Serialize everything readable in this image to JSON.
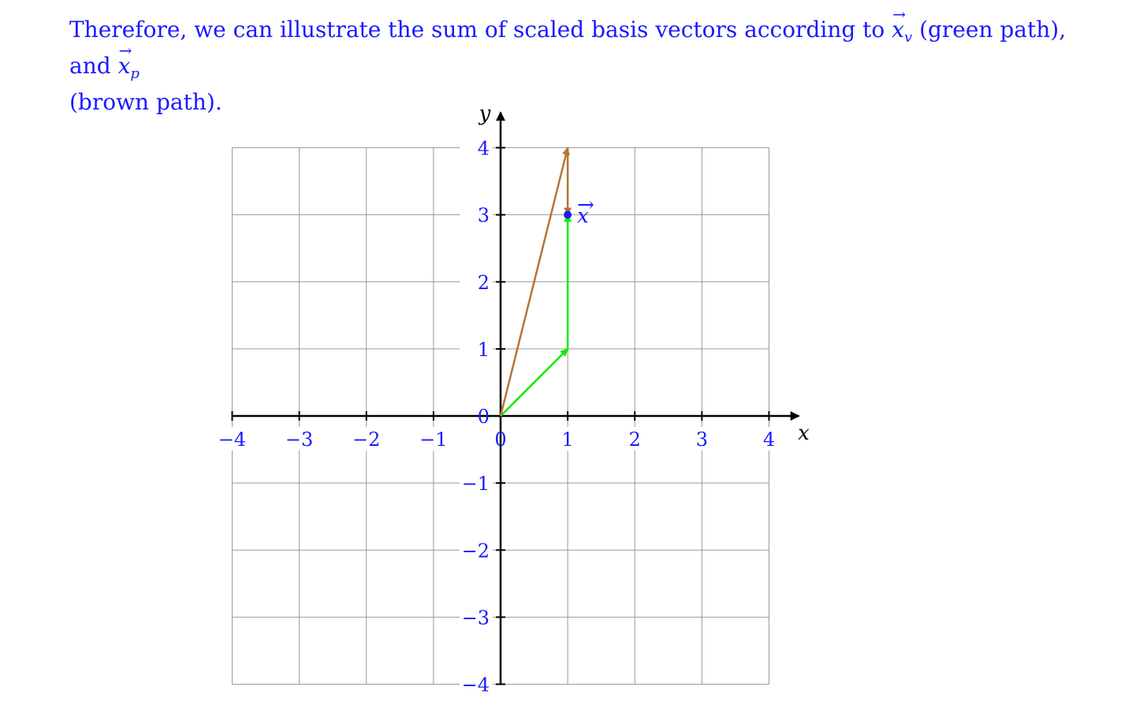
{
  "text": {
    "line_start": "Therefore, we can illustrate the sum of scaled basis vectors according to ",
    "green_label": "(green path), and ",
    "line_end": "(brown path)."
  },
  "math": {
    "vec_symbol": "x",
    "arrow": "→",
    "sub_v": "v",
    "sub_p": "p"
  },
  "chart_data": {
    "type": "vector-diagram",
    "xlabel": "x",
    "ylabel": "y",
    "xlim": [
      -4,
      4
    ],
    "ylim": [
      -4,
      4
    ],
    "grid": true,
    "x_ticks": [
      "−4",
      "−3",
      "−2",
      "−1",
      "0",
      "1",
      "2",
      "3",
      "4"
    ],
    "y_ticks": [
      "−4",
      "−3",
      "−2",
      "−1",
      "0",
      "1",
      "2",
      "3",
      "4"
    ],
    "point": {
      "x": 1,
      "y": 3,
      "label": "x",
      "label_arrow": "→",
      "color": "#1a1aff"
    },
    "paths": [
      {
        "color": "#00ee00",
        "segments": [
          {
            "from": [
              0,
              0
            ],
            "to": [
              1,
              1
            ]
          },
          {
            "from": [
              1,
              1
            ],
            "to": [
              1,
              3
            ]
          }
        ]
      },
      {
        "color": "#b87333",
        "segments": [
          {
            "from": [
              0,
              0
            ],
            "to": [
              1,
              4
            ]
          },
          {
            "from": [
              1,
              4
            ],
            "to": [
              1,
              3
            ]
          }
        ]
      }
    ],
    "colors": {
      "grid": "#999999",
      "axis": "#000000",
      "tick_label": "#1a1aff"
    }
  }
}
